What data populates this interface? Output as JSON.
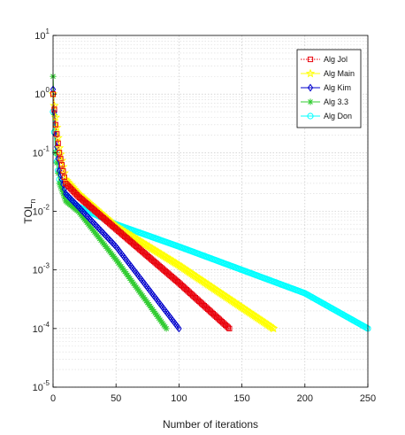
{
  "chart_data": {
    "type": "line",
    "xlabel": "Number of iterations",
    "ylabel": "TOL",
    "ylabel_subscript": "n",
    "xlim": [
      0,
      250
    ],
    "ylim_exponents": [
      -5,
      1
    ],
    "yscale": "log",
    "grid": true,
    "legend_position": "top-right",
    "x_ticks": [
      "0",
      "50",
      "100",
      "150",
      "200",
      "250"
    ],
    "y_ticks": [
      {
        "base": "10",
        "exp": "-5"
      },
      {
        "base": "10",
        "exp": "-4"
      },
      {
        "base": "10",
        "exp": "-3"
      },
      {
        "base": "10",
        "exp": "-2"
      },
      {
        "base": "10",
        "exp": "-1"
      },
      {
        "base": "10",
        "exp": "0"
      },
      {
        "base": "10",
        "exp": "1"
      }
    ],
    "series": [
      {
        "name": "Alg Jol",
        "color": "#e8000b",
        "marker": "square",
        "dash": "dotted",
        "x": [
          0,
          2,
          5,
          10,
          20,
          50,
          100,
          140
        ],
        "y": [
          1.0,
          0.3,
          0.1,
          0.03,
          0.018,
          0.005,
          0.0006,
          0.0001
        ]
      },
      {
        "name": "Alg Main",
        "color": "#ffff00",
        "marker": "star",
        "dash": "solid",
        "x": [
          0,
          2,
          5,
          10,
          20,
          50,
          100,
          175
        ],
        "y": [
          1.0,
          0.4,
          0.12,
          0.035,
          0.02,
          0.0055,
          0.0012,
          0.0001
        ]
      },
      {
        "name": "Alg Kim",
        "color": "#0000cc",
        "marker": "diamond",
        "dash": "solid",
        "x": [
          0,
          2,
          5,
          10,
          20,
          50,
          100
        ],
        "y": [
          1.2,
          0.2,
          0.05,
          0.02,
          0.012,
          0.0025,
          0.0001
        ]
      },
      {
        "name": "Alg 3.3",
        "color": "#33cc33",
        "marker": "asterisk",
        "dash": "solid",
        "x": [
          0,
          2,
          5,
          10,
          20,
          50,
          90
        ],
        "y": [
          2.0,
          0.1,
          0.03,
          0.015,
          0.01,
          0.0015,
          0.0001
        ]
      },
      {
        "name": "Alg Don",
        "color": "#00ffff",
        "marker": "circle",
        "dash": "solid",
        "x": [
          0,
          2,
          5,
          10,
          20,
          50,
          100,
          150,
          200,
          250
        ],
        "y": [
          0.5,
          0.1,
          0.035,
          0.018,
          0.012,
          0.006,
          0.0025,
          0.001,
          0.0004,
          0.0001
        ]
      }
    ]
  }
}
